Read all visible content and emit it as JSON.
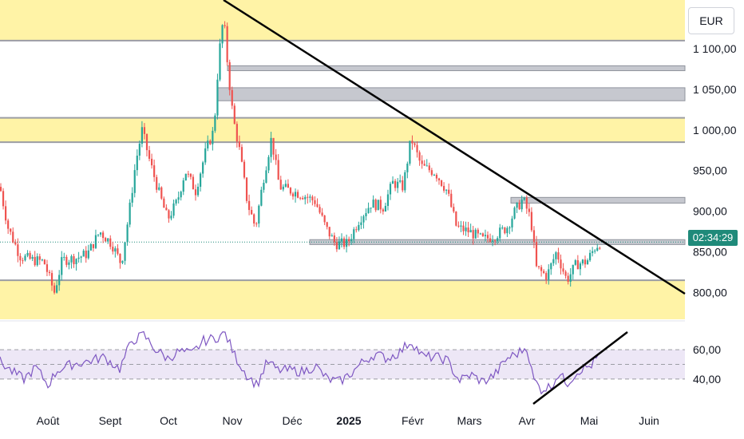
{
  "currency": "EUR",
  "countdown": "02:34:29",
  "chart_data": [
    {
      "type": "candlestick",
      "title": "",
      "price_axis": {
        "ticks": [
          800,
          850,
          900,
          950,
          1000,
          1050,
          1100
        ],
        "tick_labels": [
          "800,00",
          "850,00",
          "900,00",
          "950,00",
          "1 000,00",
          "1 050,00",
          "1 100,00"
        ],
        "range": [
          767,
          1160
        ]
      },
      "time_axis": {
        "labels": [
          "Août",
          "Sept",
          "Oct",
          "Nov",
          "Déc",
          "2025",
          "Févr",
          "Mars",
          "Avr",
          "Mai",
          "Juin"
        ],
        "bold": [
          "2025"
        ]
      },
      "last_price": 862,
      "zones_yellow": [
        [
          1110,
          1160
        ],
        [
          985,
          1015
        ],
        [
          767,
          815
        ]
      ],
      "zones_gray": [
        [
          1073,
          1079
        ],
        [
          1036,
          1052
        ],
        [
          910,
          917
        ],
        [
          859,
          865
        ]
      ],
      "levels": [
        1110,
        1015,
        985,
        815
      ],
      "trendline": {
        "from": [
          "end Oct",
          1160
        ],
        "to": [
          "mid Juin",
          795
        ]
      },
      "colors": {
        "up": "#26a69a",
        "down": "#ef5350",
        "zone_yellow": "#fff3a6",
        "zone_gray": "#c6c8cf",
        "trendline": "#000000"
      }
    },
    {
      "type": "line",
      "title": "",
      "y_ticks": [
        40,
        60
      ],
      "y_tick_labels": [
        "40,00",
        "60,00"
      ],
      "bands": [
        40,
        50,
        60
      ],
      "range": [
        22,
        78
      ],
      "colors": {
        "line": "#7e57c2",
        "band": "#ede7f6"
      }
    }
  ]
}
